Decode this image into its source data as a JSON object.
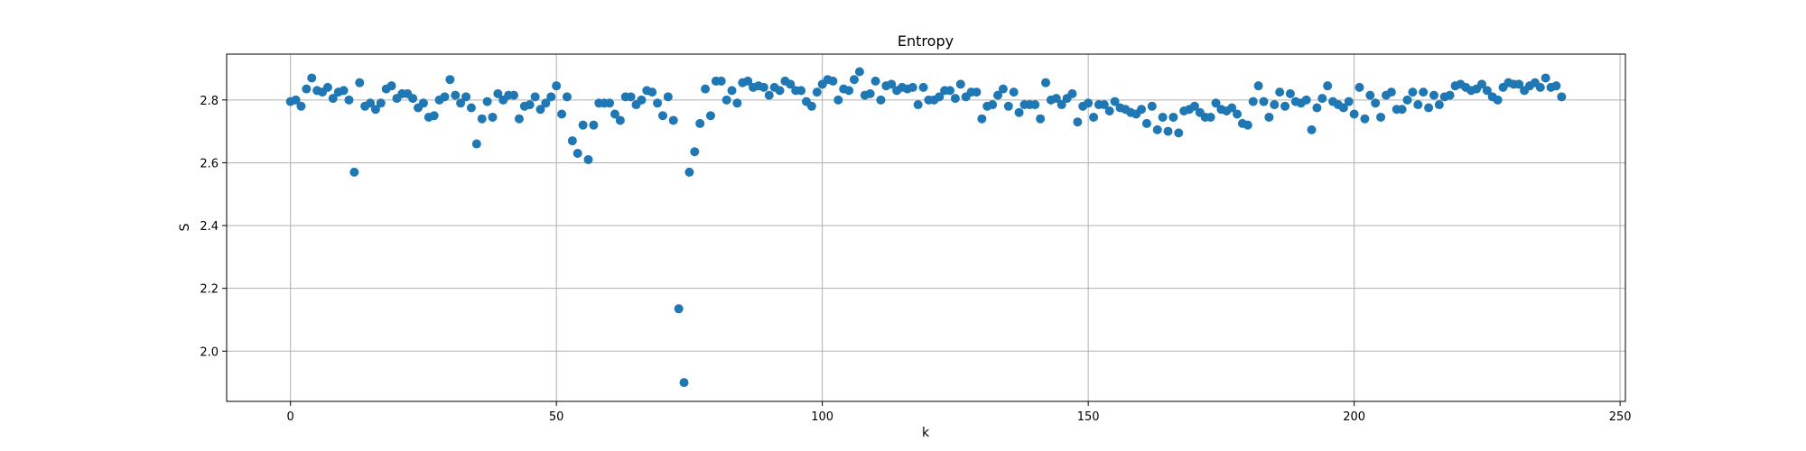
{
  "chart_data": {
    "type": "scatter",
    "title": "Entropy",
    "xlabel": "k",
    "ylabel": "S",
    "xlim": [
      -12,
      251
    ],
    "ylim": [
      1.84,
      2.946
    ],
    "xticks": [
      0,
      50,
      100,
      150,
      200,
      250
    ],
    "yticks": [
      2.0,
      2.2,
      2.4,
      2.6,
      2.8
    ],
    "xtick_labels": [
      "0",
      "50",
      "100",
      "150",
      "200",
      "250"
    ],
    "ytick_labels": [
      "2.0",
      "2.2",
      "2.4",
      "2.6",
      "2.8"
    ],
    "grid": true,
    "marker_color": "#1f77b4",
    "x": [
      0,
      1,
      2,
      3,
      4,
      5,
      6,
      7,
      8,
      9,
      10,
      11,
      12,
      13,
      14,
      15,
      16,
      17,
      18,
      19,
      20,
      21,
      22,
      23,
      24,
      25,
      26,
      27,
      28,
      29,
      30,
      31,
      32,
      33,
      34,
      35,
      36,
      37,
      38,
      39,
      40,
      41,
      42,
      43,
      44,
      45,
      46,
      47,
      48,
      49,
      50,
      51,
      52,
      53,
      54,
      55,
      56,
      57,
      58,
      59,
      60,
      61,
      62,
      63,
      64,
      65,
      66,
      67,
      68,
      69,
      70,
      71,
      72,
      73,
      74,
      75,
      76,
      77,
      78,
      79,
      80,
      81,
      82,
      83,
      84,
      85,
      86,
      87,
      88,
      89,
      90,
      91,
      92,
      93,
      94,
      95,
      96,
      97,
      98,
      99,
      100,
      101,
      102,
      103,
      104,
      105,
      106,
      107,
      108,
      109,
      110,
      111,
      112,
      113,
      114,
      115,
      116,
      117,
      118,
      119,
      120,
      121,
      122,
      123,
      124,
      125,
      126,
      127,
      128,
      129,
      130,
      131,
      132,
      133,
      134,
      135,
      136,
      137,
      138,
      139,
      140,
      141,
      142,
      143,
      144,
      145,
      146,
      147,
      148,
      149,
      150,
      151,
      152,
      153,
      154,
      155,
      156,
      157,
      158,
      159,
      160,
      161,
      162,
      163,
      164,
      165,
      166,
      167,
      168,
      169,
      170,
      171,
      172,
      173,
      174,
      175,
      176,
      177,
      178,
      179,
      180,
      181,
      182,
      183,
      184,
      185,
      186,
      187,
      188,
      189,
      190,
      191,
      192,
      193,
      194,
      195,
      196,
      197,
      198,
      199,
      200,
      201,
      202,
      203,
      204,
      205,
      206,
      207,
      208,
      209,
      210,
      211,
      212,
      213,
      214,
      215,
      216,
      217,
      218,
      219,
      220,
      221,
      222,
      223,
      224,
      225,
      226,
      227,
      228,
      229,
      230,
      231,
      232,
      233,
      234,
      235,
      236,
      237,
      238,
      239
    ],
    "y": [
      2.795,
      2.8,
      2.78,
      2.835,
      2.87,
      2.83,
      2.825,
      2.84,
      2.805,
      2.825,
      2.83,
      2.8,
      2.57,
      2.855,
      2.78,
      2.79,
      2.77,
      2.79,
      2.835,
      2.845,
      2.805,
      2.82,
      2.82,
      2.805,
      2.775,
      2.79,
      2.745,
      2.75,
      2.8,
      2.81,
      2.865,
      2.815,
      2.79,
      2.81,
      2.775,
      2.66,
      2.74,
      2.795,
      2.745,
      2.82,
      2.8,
      2.815,
      2.815,
      2.74,
      2.78,
      2.785,
      2.81,
      2.77,
      2.79,
      2.81,
      2.845,
      2.755,
      2.81,
      2.67,
      2.63,
      2.72,
      2.61,
      2.72,
      2.79,
      2.79,
      2.79,
      2.755,
      2.735,
      2.81,
      2.81,
      2.785,
      2.8,
      2.83,
      2.825,
      2.79,
      2.75,
      2.81,
      2.735,
      2.135,
      1.9,
      2.57,
      2.635,
      2.725,
      2.835,
      2.75,
      2.86,
      2.86,
      2.8,
      2.83,
      2.79,
      2.855,
      2.86,
      2.84,
      2.845,
      2.84,
      2.815,
      2.84,
      2.83,
      2.86,
      2.85,
      2.83,
      2.83,
      2.795,
      2.78,
      2.825,
      2.85,
      2.865,
      2.86,
      2.8,
      2.835,
      2.83,
      2.865,
      2.89,
      2.815,
      2.82,
      2.86,
      2.8,
      2.845,
      2.85,
      2.83,
      2.84,
      2.835,
      2.84,
      2.785,
      2.84,
      2.8,
      2.8,
      2.81,
      2.83,
      2.83,
      2.805,
      2.85,
      2.81,
      2.825,
      2.825,
      2.74,
      2.78,
      2.785,
      2.815,
      2.835,
      2.78,
      2.825,
      2.76,
      2.785,
      2.785,
      2.785,
      2.74,
      2.855,
      2.8,
      2.805,
      2.785,
      2.805,
      2.82,
      2.73,
      2.78,
      2.79,
      2.745,
      2.785,
      2.785,
      2.765,
      2.795,
      2.775,
      2.77,
      2.76,
      2.755,
      2.77,
      2.725,
      2.78,
      2.705,
      2.745,
      2.7,
      2.745,
      2.695,
      2.765,
      2.77,
      2.78,
      2.76,
      2.745,
      2.745,
      2.79,
      2.77,
      2.765,
      2.775,
      2.755,
      2.725,
      2.72,
      2.795,
      2.845,
      2.795,
      2.745,
      2.785,
      2.825,
      2.78,
      2.82,
      2.795,
      2.79,
      2.8,
      2.705,
      2.775,
      2.805,
      2.845,
      2.795,
      2.785,
      2.775,
      2.795,
      2.755,
      2.84,
      2.74,
      2.815,
      2.79,
      2.745,
      2.815,
      2.825,
      2.77,
      2.77,
      2.8,
      2.825,
      2.785,
      2.825,
      2.775,
      2.815,
      2.785,
      2.81,
      2.815,
      2.845,
      2.85,
      2.84,
      2.83,
      2.835,
      2.85,
      2.83,
      2.81,
      2.8,
      2.84,
      2.855,
      2.85,
      2.85,
      2.83,
      2.845,
      2.855,
      2.84,
      2.87,
      2.84,
      2.845,
      2.81
    ]
  }
}
